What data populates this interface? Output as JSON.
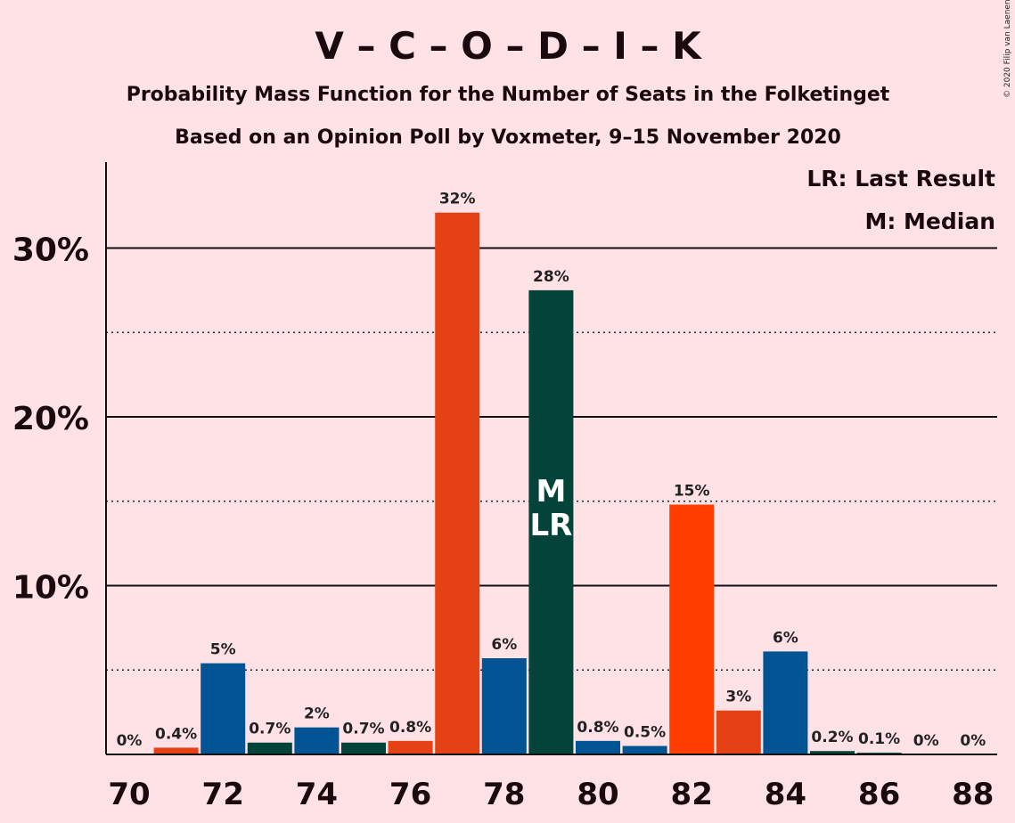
{
  "header": {
    "title": "V – C – O – D – I – K",
    "subtitle1": "Probability Mass Function for the Number of Seats in the Folketinget",
    "subtitle2": "Based on an Opinion Poll by Voxmeter, 9–15 November 2020",
    "copyright": "© 2020 Filip van Laenen"
  },
  "legend": {
    "last_result": "LR: Last Result",
    "median": "M: Median",
    "placement": "top-right"
  },
  "colors": {
    "background": "#ffe2e6",
    "blue": "#005493",
    "orange": "#e44214",
    "red_orange": "#ff3d00",
    "dark_green": "#04433a"
  },
  "chart_data": {
    "type": "bar",
    "x": [
      70,
      71,
      72,
      73,
      74,
      75,
      76,
      77,
      78,
      79,
      80,
      81,
      82,
      83,
      84,
      85,
      86,
      87,
      88
    ],
    "values": [
      0,
      0.4,
      5.4,
      0.7,
      1.6,
      0.7,
      0.8,
      32.1,
      5.7,
      27.5,
      0.8,
      0.5,
      14.8,
      2.6,
      6.1,
      0.2,
      0.1,
      0,
      0
    ],
    "value_labels": [
      "0%",
      "0.4%",
      "5%",
      "0.7%",
      "2%",
      "0.7%",
      "0.8%",
      "32%",
      "6%",
      "28%",
      "0.8%",
      "0.5%",
      "15%",
      "3%",
      "6%",
      "0.2%",
      "0.1%",
      "0%",
      "0%"
    ],
    "bar_colors": [
      "#005493",
      "#e44214",
      "#005493",
      "#04433a",
      "#005493",
      "#04433a",
      "#e44214",
      "#e44214",
      "#005493",
      "#04433a",
      "#005493",
      "#005493",
      "#ff3d00",
      "#e44214",
      "#005493",
      "#04433a",
      "#04433a",
      "#005493",
      "#005493"
    ],
    "x_tick_labels": [
      "70",
      "72",
      "74",
      "76",
      "78",
      "80",
      "82",
      "84",
      "86",
      "88"
    ],
    "x_tick_values": [
      70,
      72,
      74,
      76,
      78,
      80,
      82,
      84,
      86,
      88
    ],
    "y_tick_labels": [
      "10%",
      "20%",
      "30%"
    ],
    "y_tick_values": [
      10,
      20,
      30
    ],
    "y_minor_values": [
      5,
      15,
      25
    ],
    "ylim": [
      0,
      35
    ],
    "grid": true,
    "median_seat": 79,
    "last_result_seat": 79,
    "median_marker": "M",
    "last_result_marker": "LR"
  }
}
